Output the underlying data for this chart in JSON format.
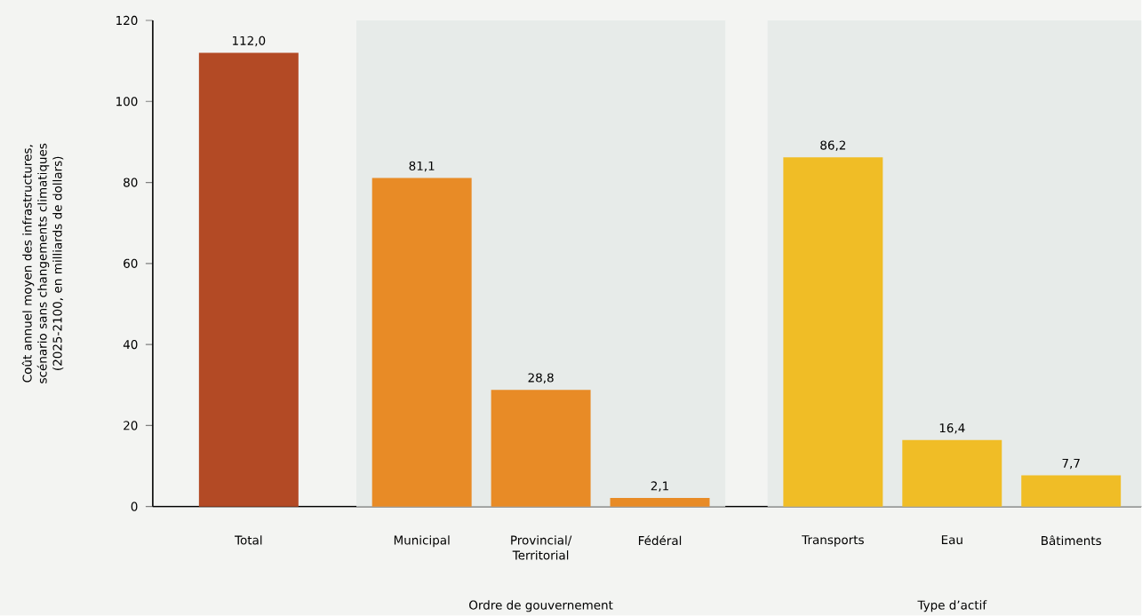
{
  "chart_data": {
    "type": "bar",
    "ylabel": "Coût annuel moyen des infrastructures, scénario sans changements climatiques (2025-2100, en milliards de dollars)",
    "categories": [
      "Total",
      "Municipal",
      "Provincial/ Territorial",
      "Fédéral",
      "Transports",
      "Eau",
      "Bâtiments"
    ],
    "values": [
      112.0,
      81.1,
      28.8,
      2.1,
      86.2,
      16.4,
      7.7
    ],
    "colors": [
      "#b34a25",
      "#e88b26",
      "#e88b26",
      "#e88b26",
      "#f0bd26",
      "#f0bd26",
      "#f0bd26"
    ],
    "value_labels": [
      "112,0",
      "81,1",
      "28,8",
      "2,1",
      "86,2",
      "16,4",
      "7,7"
    ],
    "ylim": [
      0,
      120
    ],
    "yticks": [
      0,
      20,
      40,
      60,
      80,
      100,
      120
    ],
    "annotations": [
      "Ordre de gouvernement",
      "Type d’actif"
    ],
    "bands": [
      {
        "axis": "x",
        "from": "Municipal",
        "to": "Fédéral",
        "color": "#e7ebe9"
      },
      {
        "axis": "x",
        "from": "Transports",
        "to": "Bâtiments",
        "color": "#e7ebe9"
      }
    ]
  }
}
